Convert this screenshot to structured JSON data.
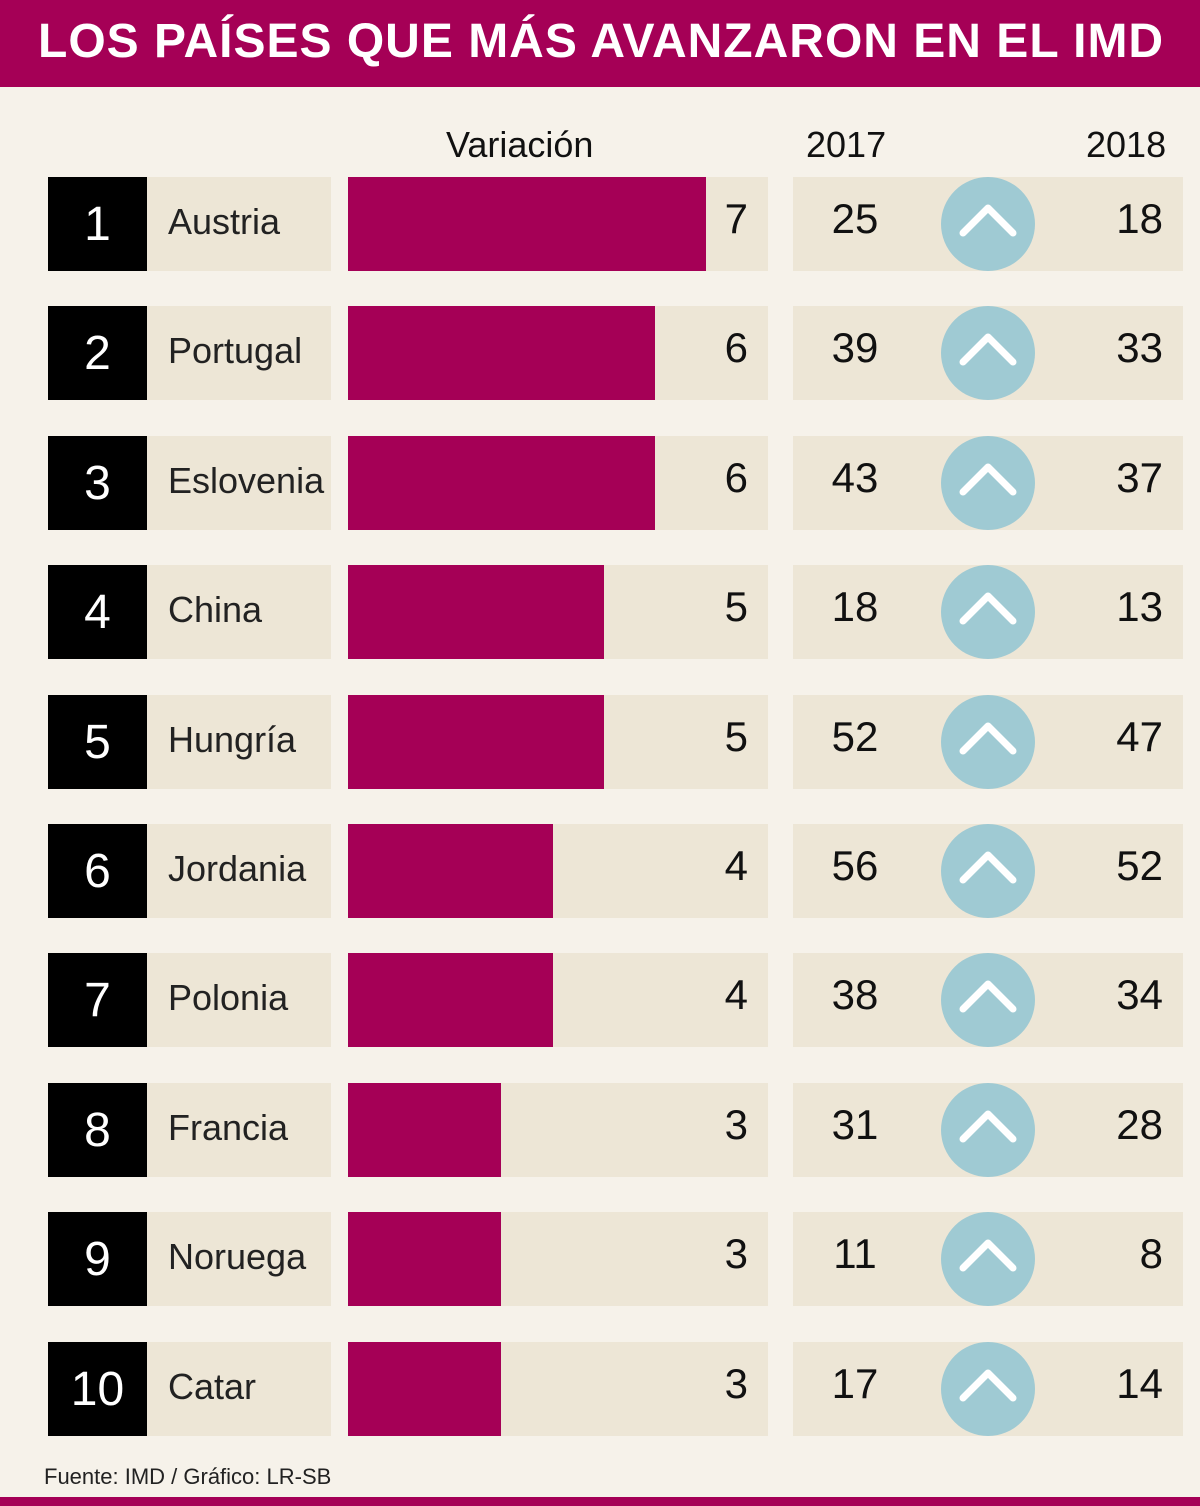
{
  "title": "LOS PAÍSES QUE MÁS AVANZARON EN EL IMD",
  "source": "Fuente: IMD / Gráfico: LR-SB",
  "colors": {
    "accent": "#a50056",
    "rank_box": "#000000",
    "track": "#ede6d6",
    "background": "#f6f2ea",
    "arrow_circle": "#9fcad3"
  },
  "chart_data": {
    "type": "bar",
    "orientation": "horizontal",
    "headers": {
      "variation": "Variación",
      "year_a": "2017",
      "year_b": "2018"
    },
    "xlim": [
      0,
      7
    ],
    "rows": [
      {
        "rank": "1",
        "country": "Austria",
        "variation": 7,
        "rank_2017": 25,
        "rank_2018": 18,
        "icon": "up-arrow-icon"
      },
      {
        "rank": "2",
        "country": "Portugal",
        "variation": 6,
        "rank_2017": 39,
        "rank_2018": 33,
        "icon": "up-arrow-icon"
      },
      {
        "rank": "3",
        "country": "Eslovenia",
        "variation": 6,
        "rank_2017": 43,
        "rank_2018": 37,
        "icon": "up-arrow-icon"
      },
      {
        "rank": "4",
        "country": "China",
        "variation": 5,
        "rank_2017": 18,
        "rank_2018": 13,
        "icon": "up-arrow-icon"
      },
      {
        "rank": "5",
        "country": "Hungría",
        "variation": 5,
        "rank_2017": 52,
        "rank_2018": 47,
        "icon": "up-arrow-icon"
      },
      {
        "rank": "6",
        "country": "Jordania",
        "variation": 4,
        "rank_2017": 56,
        "rank_2018": 52,
        "icon": "up-arrow-icon"
      },
      {
        "rank": "7",
        "country": "Polonia",
        "variation": 4,
        "rank_2017": 38,
        "rank_2018": 34,
        "icon": "up-arrow-icon"
      },
      {
        "rank": "8",
        "country": "Francia",
        "variation": 3,
        "rank_2017": 31,
        "rank_2018": 28,
        "icon": "up-arrow-icon"
      },
      {
        "rank": "9",
        "country": "Noruega",
        "variation": 3,
        "rank_2017": 11,
        "rank_2018": 8,
        "icon": "up-arrow-icon"
      },
      {
        "rank": "10",
        "country": "Catar",
        "variation": 3,
        "rank_2017": 17,
        "rank_2018": 14,
        "icon": "up-arrow-icon"
      }
    ]
  }
}
